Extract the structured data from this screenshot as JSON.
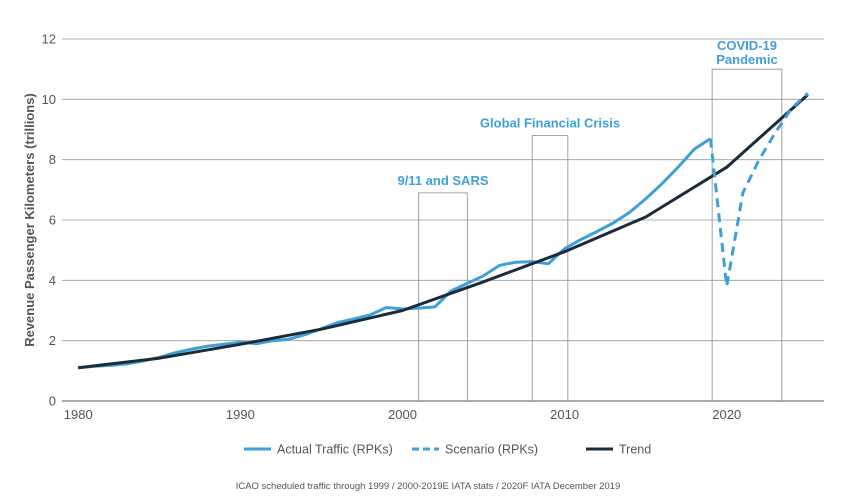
{
  "chart_data": {
    "type": "line",
    "title": "",
    "xlabel": "",
    "ylabel": "Revenue Passenger Kilometers (trillions)",
    "xlim": [
      1979,
      2026
    ],
    "ylim": [
      0,
      12
    ],
    "x_ticks": [
      1980,
      1990,
      2000,
      2010,
      2020
    ],
    "y_ticks": [
      0,
      2,
      4,
      6,
      8,
      10,
      12
    ],
    "grid": "horizontal",
    "legend_position": "bottom",
    "colors": {
      "actual": "#3fa0d8",
      "scenario": "#3fa0d8",
      "trend": "#1c2b3a",
      "annotation": "#3fa0d8",
      "grid": "#9a9a9a"
    },
    "series": [
      {
        "name": "Actual Traffic (RPKs)",
        "style": "solid",
        "x": [
          1980,
          1981,
          1982,
          1983,
          1984,
          1985,
          1986,
          1987,
          1988,
          1989,
          1990,
          1991,
          1992,
          1993,
          1994,
          1995,
          1996,
          1997,
          1998,
          1999,
          2000,
          2001,
          2002,
          2003,
          2004,
          2005,
          2006,
          2007,
          2008,
          2009,
          2010,
          2011,
          2012,
          2013,
          2014,
          2015,
          2016,
          2017,
          2018,
          2019
        ],
        "y": [
          1.1,
          1.15,
          1.18,
          1.23,
          1.33,
          1.45,
          1.6,
          1.72,
          1.82,
          1.88,
          1.95,
          1.9,
          2.0,
          2.05,
          2.2,
          2.4,
          2.6,
          2.72,
          2.85,
          3.1,
          3.05,
          3.08,
          3.12,
          3.65,
          3.9,
          4.15,
          4.5,
          4.6,
          4.62,
          4.55,
          5.05,
          5.35,
          5.62,
          5.9,
          6.25,
          6.7,
          7.2,
          7.75,
          8.35,
          8.7
        ]
      },
      {
        "name": "Scenario (RPKs)",
        "style": "dashed",
        "x": [
          2019,
          2020,
          2021,
          2022,
          2023,
          2024,
          2025
        ],
        "y": [
          8.7,
          3.8,
          6.9,
          8.0,
          8.9,
          9.7,
          10.2
        ]
      },
      {
        "name": "Trend",
        "style": "solid",
        "x": [
          1980,
          1985,
          1990,
          1995,
          2000,
          2005,
          2010,
          2015,
          2020,
          2025
        ],
        "y": [
          1.1,
          1.42,
          1.88,
          2.38,
          3.0,
          3.95,
          4.95,
          6.1,
          7.75,
          10.15
        ]
      }
    ],
    "annotations": [
      {
        "label": "9/11 and SARS",
        "x_start": 2001,
        "x_end": 2004,
        "y_top": 6.9
      },
      {
        "label": "Global Financial Crisis",
        "x_start": 2008,
        "x_end": 2010.2,
        "y_top": 8.8
      },
      {
        "label_lines": [
          "COVID-19",
          "Pandemic"
        ],
        "x_start": 2019.1,
        "x_end": 2023.4,
        "y_top": 11.0
      }
    ],
    "source_note": "ICAO scheduled traffic through 1999 / 2000-2019E IATA stats / 2020F IATA December 2019"
  }
}
